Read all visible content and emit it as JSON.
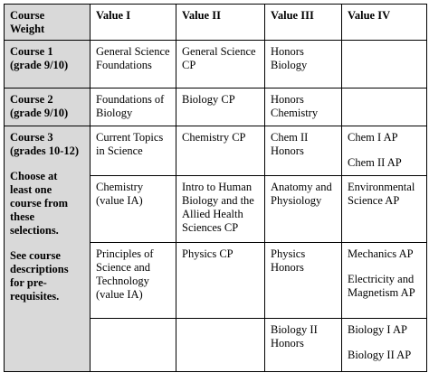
{
  "headers": [
    "Course\nWeight",
    "Value I",
    "Value II",
    "Value III",
    "Value IV"
  ],
  "rows": [
    {
      "label": "Course 1\n(grade 9/10)",
      "cells": [
        [
          "General Science\nFoundations"
        ],
        [
          "General Science\nCP"
        ],
        [
          "Honors\nBiology"
        ],
        [
          ""
        ]
      ]
    },
    {
      "label": "Course 2\n(grade 9/10)",
      "cells": [
        [
          "Foundations of\nBiology"
        ],
        [
          "Biology CP"
        ],
        [
          "Honors\nChemistry"
        ],
        [
          ""
        ]
      ]
    }
  ],
  "course3": {
    "label": "Course 3\n(grades 10-12)",
    "note1": "Choose at\nleast one\ncourse from\nthese\nselections.",
    "note2": "See course\ndescriptions\nfor pre-\nrequisites.",
    "rows": [
      [
        [
          "Current Topics\nin Science"
        ],
        [
          "Chemistry CP"
        ],
        [
          "Chem II\nHonors"
        ],
        [
          "Chem I AP",
          "Chem II AP"
        ]
      ],
      [
        [
          "Chemistry\n(value IA)"
        ],
        [
          "Intro to Human\nBiology and the\nAllied Health\nSciences CP"
        ],
        [
          "Anatomy and\nPhysiology"
        ],
        [
          "Environmental\nScience AP"
        ]
      ],
      [
        [
          "Principles of\nScience and\nTechnology\n(value IA)"
        ],
        [
          "Physics CP"
        ],
        [
          "Physics\nHonors"
        ],
        [
          "Mechanics AP",
          "Electricity and\nMagnetism AP"
        ]
      ],
      [
        [
          ""
        ],
        [
          ""
        ],
        [
          "Biology II\nHonors"
        ],
        [
          "Biology I AP",
          "Biology II AP"
        ]
      ]
    ]
  }
}
